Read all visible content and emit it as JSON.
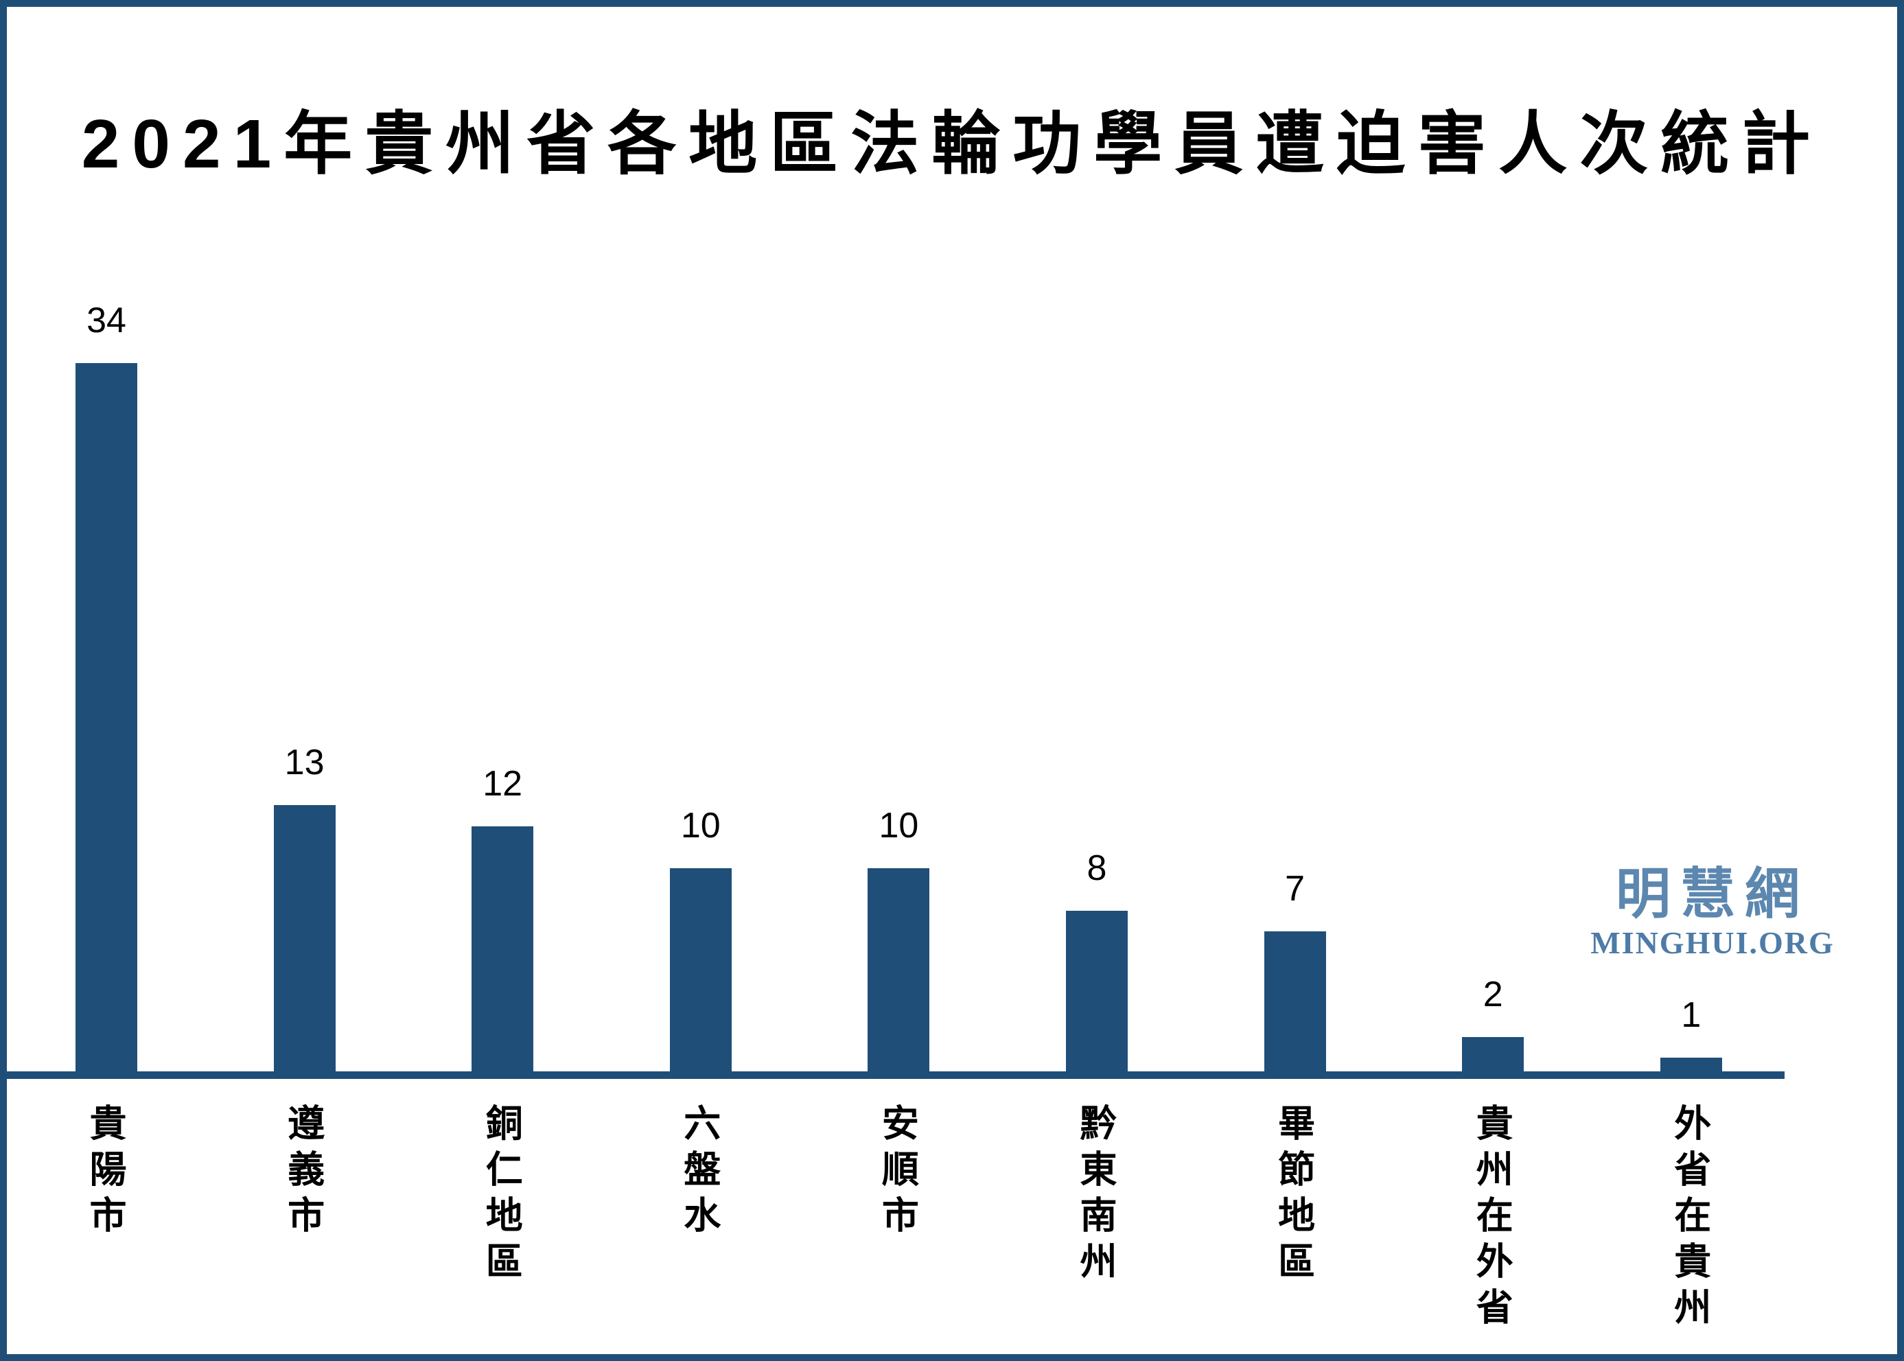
{
  "page": {
    "border_color": "#1F4F78",
    "background_color": "#FFFFFF"
  },
  "title": "2021年貴州省各地區法輪功學員遭迫害人次統計",
  "logo": {
    "cjk": "明慧網",
    "latin": "MINGHUI.ORG",
    "cjk_color": "#5C87AF",
    "latin_color": "#4E7BA7"
  },
  "chart_data": {
    "type": "bar",
    "title": "2021年貴州省各地區法輪功學員遭迫害人次統計",
    "categories": [
      "貴陽市",
      "遵義市",
      "銅仁地區",
      "六盤水",
      "安順市",
      "黔東南州",
      "畢節地區",
      "貴州在外省",
      "外省在貴州"
    ],
    "values": [
      34,
      13,
      12,
      10,
      10,
      8,
      7,
      2,
      1
    ],
    "bar_color": "#1F4F78",
    "value_labels_shown": true,
    "category_label_orientation": "vertical",
    "xlabel": "",
    "ylabel": "",
    "y_axis_visible": false,
    "gridlines": false,
    "baseline_color": "#1F4F78",
    "ylim": [
      0,
      35
    ]
  }
}
